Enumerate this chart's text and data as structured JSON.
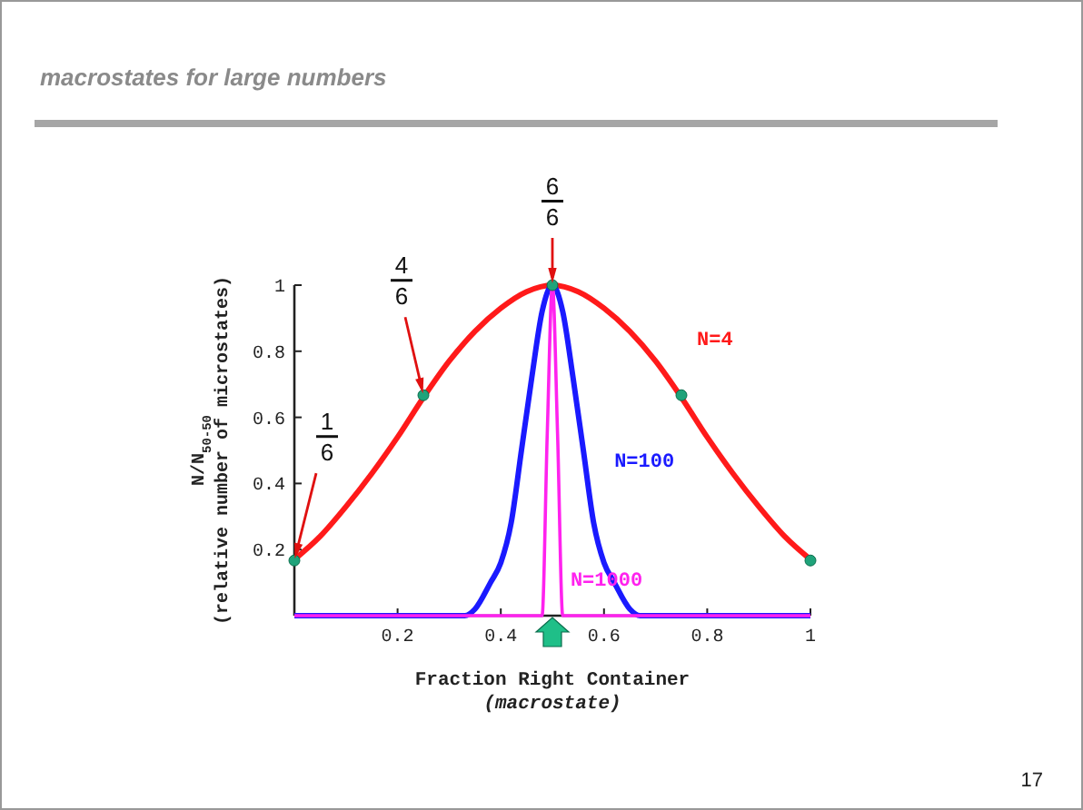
{
  "chart_data": {
    "type": "line",
    "title": "macrostates for large numbers",
    "xlabel": "Fraction Right Container\n(macrostate)",
    "ylabel": "N/N$_{50-50}$\n(relative number of microstates)",
    "xlim": [
      0,
      1
    ],
    "ylim": [
      0,
      1
    ],
    "xticks": [
      0.2,
      0.4,
      0.6,
      0.8,
      1
    ],
    "yticks": [
      0.2,
      0.4,
      0.6,
      0.8,
      {
        "value": 1,
        "label": "1"
      }
    ],
    "grid": false,
    "line_style": "solid",
    "series": [
      {
        "name": "N=4",
        "color": "#ff1a1a",
        "x": [
          0,
          0.05,
          0.1,
          0.15,
          0.2,
          0.25,
          0.3,
          0.35,
          0.4,
          0.45,
          0.5,
          0.55,
          0.6,
          0.65,
          0.7,
          0.75,
          0.8,
          0.85,
          0.9,
          0.95,
          1
        ],
        "values": [
          0.17,
          0.24,
          0.33,
          0.43,
          0.54,
          0.66,
          0.77,
          0.86,
          0.93,
          0.98,
          1,
          0.98,
          0.93,
          0.86,
          0.77,
          0.66,
          0.54,
          0.43,
          0.33,
          0.24,
          0.17
        ]
      },
      {
        "name": "N=100",
        "color": "#1a1aff",
        "x": [
          0,
          0.33,
          0.35,
          0.38,
          0.4,
          0.42,
          0.44,
          0.46,
          0.48,
          0.5,
          0.52,
          0.54,
          0.56,
          0.58,
          0.6,
          0.62,
          0.65,
          0.67,
          1
        ],
        "values": [
          0,
          0,
          0.02,
          0.1,
          0.16,
          0.28,
          0.5,
          0.72,
          0.92,
          1,
          0.92,
          0.72,
          0.5,
          0.28,
          0.16,
          0.1,
          0.02,
          0,
          0
        ]
      },
      {
        "name": "N=1000",
        "color": "#ff22ee",
        "x": [
          0,
          0.48,
          0.49,
          0.5,
          0.51,
          0.52,
          1
        ],
        "values": [
          0,
          0,
          0.55,
          1,
          0.55,
          0,
          0
        ]
      },
      {
        "type": "scatter",
        "color": "#1fa37a",
        "marker": "circle",
        "x": [
          0,
          0.25,
          0.5,
          0.75,
          1
        ],
        "values": [
          0.167,
          0.667,
          1,
          0.667,
          0.167
        ]
      }
    ],
    "annotations": [
      {
        "text": "1\n6",
        "x": 0,
        "y": 0.167
      },
      {
        "text": "4\n6",
        "x": 0.25,
        "y": 0.667
      },
      {
        "text": "6\n6",
        "x": 0.5,
        "y": 1
      },
      "17"
    ]
  }
}
